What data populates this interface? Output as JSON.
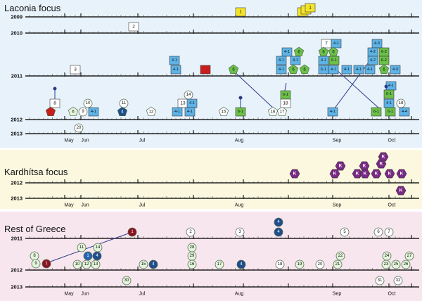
{
  "panels": [
    {
      "key": "laconia",
      "title": "Laconia focus",
      "bg": "#e8f2fa"
    },
    {
      "key": "karditsa",
      "title": "Kardhítsa focus",
      "bg": "#fbf8df"
    },
    {
      "key": "rest",
      "title": "Rest of Greece",
      "bg": "#f8e6ee"
    }
  ],
  "months": [
    "May",
    "Jun",
    "Jul",
    "Aug",
    "Sep",
    "Oct"
  ],
  "years": {
    "y2009": "2009",
    "y2010": "2010",
    "y2011": "2011",
    "y2012": "2012",
    "y2013": "2013"
  },
  "colors": {
    "yellow": "#f5e52a",
    "white": "#ffffff",
    "lightblue": "#5eb3e6",
    "red": "#c81e1e",
    "green": "#6cc04a",
    "palegreen": "#e3f5da",
    "darkred": "#8a1420",
    "navy": "#1f4e8c",
    "purple": "#7a2a86",
    "blue": "#2464b0"
  },
  "laconia": {
    "y2009_cases": [
      "1",
      "1"
    ],
    "y2010_cases": [
      "2",
      "7",
      "4-1"
    ],
    "y2011_cases": [
      "3",
      "4-1",
      "4-1",
      "6",
      "6",
      "6",
      "4-1",
      "4-1",
      "4-1",
      "6",
      "6",
      "4-1",
      "4-1",
      "6-1",
      "6-1",
      "4-1",
      "4-2",
      "4-2",
      "4-3",
      "6-2",
      "6-2",
      "4-1",
      "4-1",
      "4-1",
      "4-1",
      "4-2",
      "4-3",
      "6",
      "6"
    ],
    "y2012_cases": [
      "8",
      "9",
      "10",
      "4-1",
      "4",
      "11",
      "12",
      "13",
      "14",
      "15",
      "6-1",
      "16",
      "17",
      "18",
      "6-1",
      "6-1",
      "4-1",
      "4-1",
      "6-1",
      "6-1",
      "18",
      "4-1",
      "4-4"
    ],
    "y2013_cases": [
      "20"
    ]
  },
  "karditsa": {
    "y2012_cases": [
      "K",
      "K",
      "K",
      "K",
      "K",
      "K",
      "K",
      "K",
      "K",
      "K",
      "K"
    ],
    "y2013_cases": [
      "K"
    ]
  },
  "rest": {
    "y2011_cases": [
      "1",
      "2",
      "3",
      "4",
      "4",
      "5",
      "6",
      "7"
    ],
    "y2012_cases": [
      "8",
      "9",
      "1",
      "10",
      "11",
      "12",
      "13",
      "14",
      "4",
      "28",
      "29",
      "16",
      "15",
      "4",
      "17",
      "4",
      "18",
      "19",
      "20",
      "21",
      "22",
      "23",
      "24",
      "25",
      "26",
      "27"
    ],
    "y2013_cases": [
      "30",
      "31",
      "32"
    ]
  }
}
